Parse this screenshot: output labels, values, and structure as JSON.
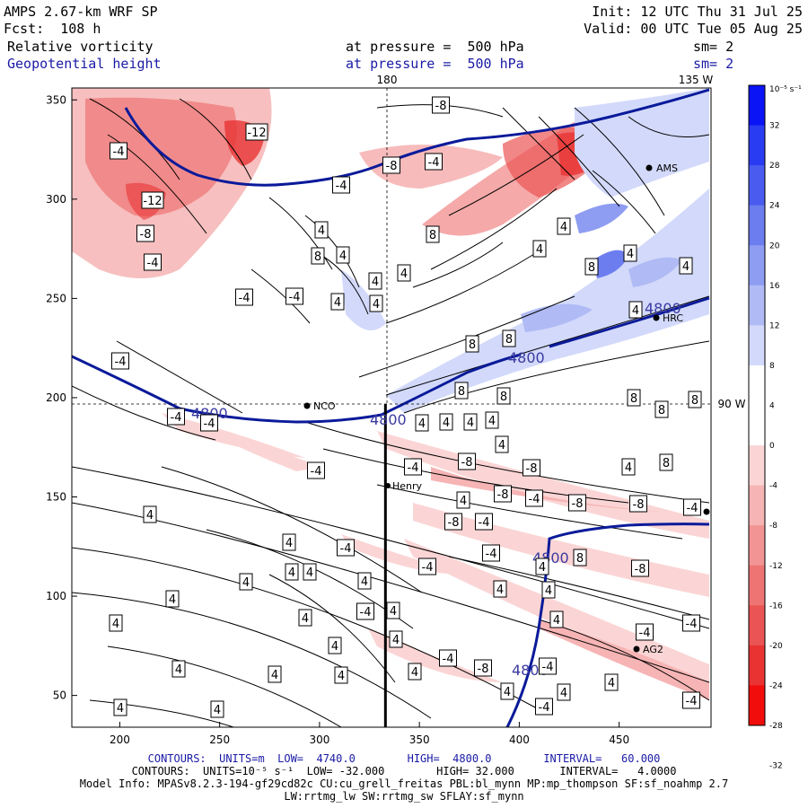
{
  "header": {
    "model": "AMPS 2.67-km WRF SP",
    "init": "Init: 12 UTC Thu 31 Jul 25",
    "fcst": "Fcst:  108 h",
    "valid": "Valid: 00 UTC Tue 05 Aug 25",
    "field1": "Relative vorticity",
    "field1_level": "at pressure =  500 hPa",
    "field1_sm": "sm= 2",
    "field2": "Geopotential height",
    "field2_level": "at pressure =  500 hPa",
    "field2_sm": "sm= 2"
  },
  "meridian_labels": {
    "m180": "180",
    "m135w": "135 W",
    "m90w": "90 W"
  },
  "stations": [
    "AMS",
    "HRC",
    "NCO",
    "Henry",
    "AG2"
  ],
  "colorbar": {
    "unit_label": "10⁻⁵ s⁻¹",
    "ticks": [
      "32",
      "28",
      "24",
      "20",
      "16",
      "12",
      "8",
      "4",
      "0",
      "-4",
      "-8",
      "-12",
      "-16",
      "-20",
      "-24",
      "-28",
      "-32"
    ],
    "positive_colors": [
      "#0a14f5",
      "#2a3cf2",
      "#4a5cf0",
      "#6c7df0",
      "#8e9cf2",
      "#b0bbf5",
      "#d2d9fa",
      "#ffffff"
    ],
    "negative_colors": [
      "#ffffff",
      "#fbd5d5",
      "#f6b4b4",
      "#f29494",
      "#ee7474",
      "#eb5454",
      "#e93333",
      "#f20d0d"
    ]
  },
  "chart_data": {
    "type": "contour map",
    "x_axis": {
      "ticks": [
        "200",
        "250",
        "300",
        "350",
        "400",
        "450"
      ],
      "range": [
        176,
        496
      ]
    },
    "y_axis": {
      "ticks": [
        "50",
        "100",
        "150",
        "200",
        "250",
        "300",
        "350"
      ],
      "range": [
        34,
        356
      ]
    },
    "height_contour_label": "4800",
    "vorticity_contour_labels": [
      "-12",
      "-8",
      "-4",
      "4",
      "8"
    ],
    "cross_section_x": 333
  },
  "footer": {
    "contours1": "CONTOURS:  UNITS=m  LOW=  4740.0        HIGH=  4800.0        INTERVAL=   60.000",
    "contours2": "CONTOURS:  UNITS=10⁻⁵ s⁻¹  LOW= -32.000        HIGH= 32.000       INTERVAL=   4.0000",
    "model_info": "Model Info: MPASv8.2.3-194-gf29cd82c CU:cu_grell_freitas PBL:bl_mynn MP:mp_thompson SF:sf_noahmp 2.7",
    "model_info2": "LW:rrtmg_lw SW:rrtmg_sw SFLAY:sf_mynn"
  }
}
